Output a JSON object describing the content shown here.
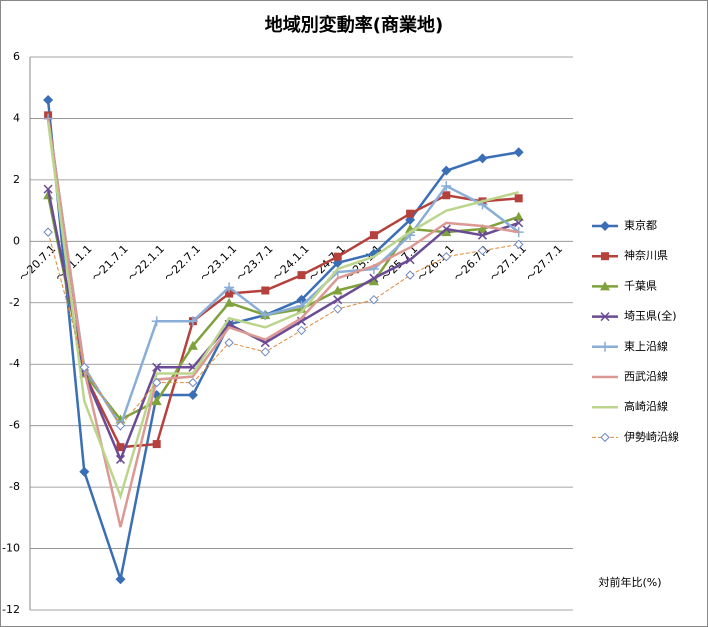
{
  "chart_data": {
    "type": "line",
    "title": "地域別変動率(商業地)",
    "y_axis_label": "対前年比(%)",
    "categories": [
      "～20.7.1",
      "～21.1.1",
      "～21.7.1",
      "～22.1.1",
      "～22.7.1",
      "～23.1.1",
      "～23.7.1",
      "～24.1.1",
      "～24.7.1",
      "～25.1.1",
      "～25.7.1",
      "～26.1.1",
      "～26.7.1",
      "～27.1.1",
      "～27.7.1"
    ],
    "ylim": [
      -12,
      6
    ],
    "yticks": [
      -12,
      -10,
      -8,
      -6,
      -4,
      -2,
      0,
      2,
      4,
      6
    ],
    "grid": true,
    "legend": "right",
    "series": [
      {
        "name": "東京都",
        "color": "#3a6eb5",
        "marker": "diamond",
        "values": [
          4.6,
          -7.5,
          -11.0,
          -5.0,
          -5.0,
          -2.7,
          -2.4,
          -1.9,
          -0.7,
          -0.4,
          0.7,
          2.3,
          2.7,
          2.9,
          null
        ]
      },
      {
        "name": "神奈川県",
        "color": "#b5413d",
        "marker": "square",
        "values": [
          4.1,
          -4.3,
          -6.7,
          -6.6,
          -2.6,
          -1.7,
          -1.6,
          -1.1,
          -0.5,
          0.2,
          0.9,
          1.5,
          1.3,
          1.4,
          null
        ]
      },
      {
        "name": "千葉県",
        "color": "#7fa23c",
        "marker": "triangle",
        "values": [
          1.5,
          -4.3,
          -5.8,
          -5.2,
          -3.4,
          -2.0,
          -2.4,
          -2.2,
          -1.6,
          -1.3,
          0.4,
          0.3,
          0.4,
          0.8,
          null
        ]
      },
      {
        "name": "埼玉県(全)",
        "color": "#6a4b94",
        "marker": "x",
        "values": [
          1.7,
          -4.3,
          -7.1,
          -4.1,
          -4.1,
          -2.7,
          -3.3,
          -2.6,
          -1.9,
          -1.2,
          -0.6,
          0.4,
          0.2,
          0.6,
          null
        ]
      },
      {
        "name": "東上沿線",
        "color": "#8aaed7",
        "marker": "plus",
        "values": [
          4.0,
          -4.1,
          -6.0,
          -2.6,
          -2.6,
          -1.5,
          -2.4,
          -2.1,
          -1.0,
          -0.9,
          0.2,
          1.8,
          1.2,
          0.3,
          null
        ]
      },
      {
        "name": "西武沿線",
        "color": "#dc9893",
        "marker": "none",
        "values": [
          4.0,
          -4.2,
          -9.3,
          -4.5,
          -4.4,
          -2.8,
          -3.2,
          -2.5,
          -1.2,
          -0.8,
          -0.2,
          0.6,
          0.5,
          0.3,
          null
        ]
      },
      {
        "name": "高崎沿線",
        "color": "#bcd58c",
        "marker": "none",
        "values": [
          3.9,
          -5.2,
          -8.3,
          -4.3,
          -4.3,
          -2.5,
          -2.8,
          -2.3,
          -0.9,
          -0.5,
          0.3,
          1.0,
          1.3,
          1.6,
          null
        ]
      },
      {
        "name": "伊勢崎沿線",
        "color": "#e08a3c",
        "marker": "open-diamond",
        "marker_color": "#6f86c4",
        "dash": true,
        "values": [
          0.3,
          -4.1,
          -6.0,
          -4.6,
          -4.6,
          -3.3,
          -3.6,
          -2.9,
          -2.2,
          -1.9,
          -1.1,
          -0.5,
          -0.3,
          -0.1,
          null
        ]
      }
    ]
  }
}
